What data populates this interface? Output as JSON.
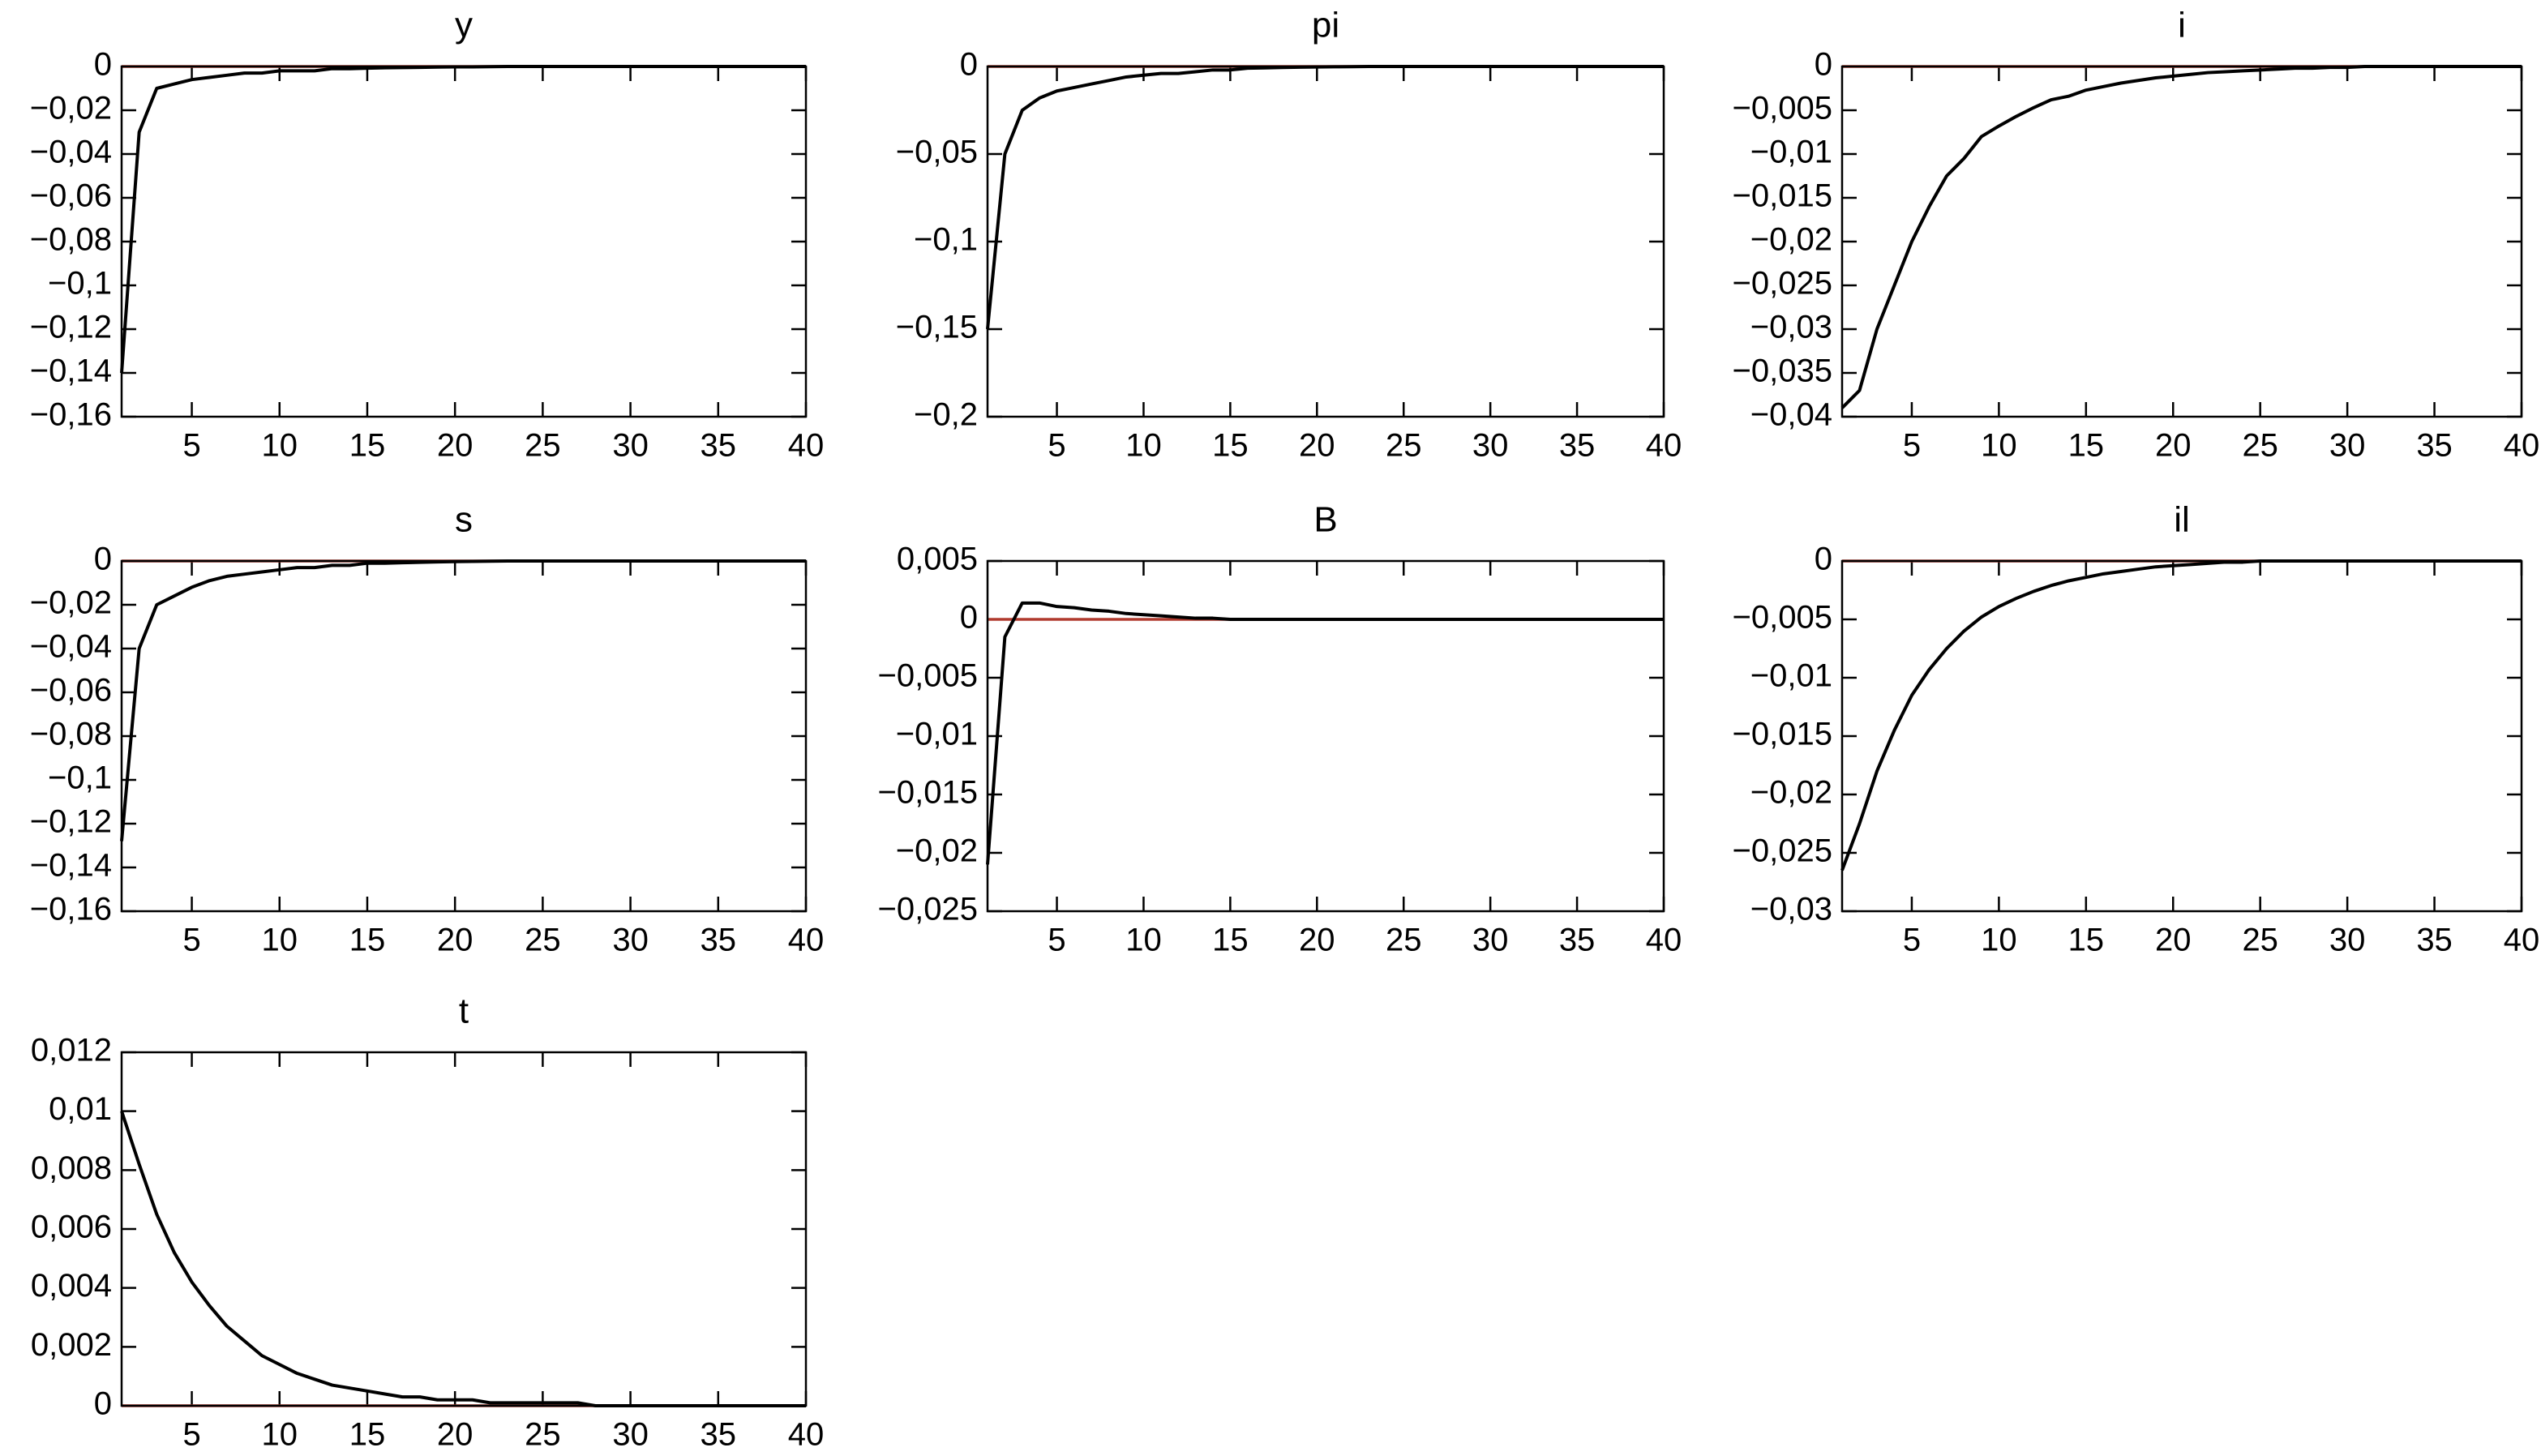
{
  "chart_data": [
    {
      "type": "line",
      "title": "y",
      "x": [
        1,
        2,
        3,
        4,
        5,
        6,
        7,
        8,
        9,
        10,
        11,
        12,
        13,
        14,
        15,
        16,
        17,
        18,
        19,
        20,
        21,
        22,
        23,
        24,
        25,
        26,
        27,
        28,
        29,
        30,
        31,
        32,
        33,
        34,
        35,
        36,
        37,
        38,
        39,
        40
      ],
      "values": [
        -0.14,
        -0.03,
        -0.01,
        -0.008,
        -0.006,
        -0.005,
        -0.004,
        -0.003,
        -0.003,
        -0.002,
        -0.002,
        -0.002,
        -0.001,
        -0.001,
        -0.0008,
        -0.0006,
        -0.0005,
        -0.0004,
        -0.0003,
        -0.0002,
        -0.0002,
        -0.0001,
        0,
        0,
        0,
        0,
        0,
        0,
        0,
        0,
        0,
        0,
        0,
        0,
        0,
        0,
        0,
        0,
        0,
        0
      ],
      "color": "#000000",
      "zero_line": {
        "value": 0,
        "color": "#b03a2e"
      },
      "xlim": [
        1,
        40
      ],
      "xticks": [
        5,
        10,
        15,
        20,
        25,
        30,
        35,
        40
      ],
      "ylim": [
        -0.16,
        0
      ],
      "yticks": [
        0,
        {
          "value": -0.02,
          "label": "−0,02"
        },
        {
          "value": -0.04,
          "label": "−0,04"
        },
        {
          "value": -0.06,
          "label": "−0,06"
        },
        {
          "value": -0.08,
          "label": "−0,08"
        },
        {
          "value": -0.1,
          "label": "−0,1"
        },
        {
          "value": -0.12,
          "label": "−0,12"
        },
        {
          "value": -0.14,
          "label": "−0,14"
        },
        {
          "value": -0.16,
          "label": "−0,16"
        }
      ]
    },
    {
      "type": "line",
      "title": "pi",
      "x": [
        1,
        2,
        3,
        4,
        5,
        6,
        7,
        8,
        9,
        10,
        11,
        12,
        13,
        14,
        15,
        16,
        17,
        18,
        19,
        20,
        21,
        22,
        23,
        24,
        25,
        26,
        27,
        28,
        29,
        30,
        31,
        32,
        33,
        34,
        35,
        36,
        37,
        38,
        39,
        40
      ],
      "values": [
        -0.15,
        -0.05,
        -0.025,
        -0.018,
        -0.014,
        -0.012,
        -0.01,
        -0.008,
        -0.006,
        -0.005,
        -0.004,
        -0.004,
        -0.003,
        -0.002,
        -0.002,
        -0.001,
        -0.0008,
        -0.0006,
        -0.0004,
        -0.0003,
        -0.0002,
        -0.0001,
        0,
        0,
        0,
        0,
        0,
        0,
        0,
        0,
        0,
        0,
        0,
        0,
        0,
        0,
        0,
        0,
        0,
        0
      ],
      "color": "#000000",
      "zero_line": {
        "value": 0,
        "color": "#b03a2e"
      },
      "xlim": [
        1,
        40
      ],
      "xticks": [
        5,
        10,
        15,
        20,
        25,
        30,
        35,
        40
      ],
      "ylim": [
        -0.2,
        0
      ],
      "yticks": [
        0,
        {
          "value": -0.05,
          "label": "−0,05"
        },
        {
          "value": -0.1,
          "label": "−0,1"
        },
        {
          "value": -0.15,
          "label": "−0,15"
        },
        {
          "value": -0.2,
          "label": "−0,2"
        }
      ]
    },
    {
      "type": "line",
      "title": "i",
      "x": [
        1,
        2,
        3,
        4,
        5,
        6,
        7,
        8,
        9,
        10,
        11,
        12,
        13,
        14,
        15,
        16,
        17,
        18,
        19,
        20,
        21,
        22,
        23,
        24,
        25,
        26,
        27,
        28,
        29,
        30,
        31,
        32,
        33,
        34,
        35,
        36,
        37,
        38,
        39,
        40
      ],
      "values": [
        -0.039,
        -0.037,
        -0.03,
        -0.025,
        -0.02,
        -0.016,
        -0.0125,
        -0.0105,
        -0.008,
        -0.0068,
        -0.0057,
        -0.0047,
        -0.0038,
        -0.0034,
        -0.0027,
        -0.0023,
        -0.0019,
        -0.0016,
        -0.0013,
        -0.0011,
        -0.0009,
        -0.0007,
        -0.0006,
        -0.0005,
        -0.0004,
        -0.0003,
        -0.0002,
        -0.0002,
        -0.0001,
        -0.0001,
        0,
        0,
        0,
        0,
        0,
        0,
        0,
        0,
        0,
        0
      ],
      "color": "#000000",
      "zero_line": {
        "value": 0,
        "color": "#b03a2e"
      },
      "xlim": [
        1,
        40
      ],
      "xticks": [
        5,
        10,
        15,
        20,
        25,
        30,
        35,
        40
      ],
      "ylim": [
        -0.04,
        0
      ],
      "yticks": [
        0,
        {
          "value": -0.005,
          "label": "−0,005"
        },
        {
          "value": -0.01,
          "label": "−0,01"
        },
        {
          "value": -0.015,
          "label": "−0,015"
        },
        {
          "value": -0.02,
          "label": "−0,02"
        },
        {
          "value": -0.025,
          "label": "−0,025"
        },
        {
          "value": -0.03,
          "label": "−0,03"
        },
        {
          "value": -0.035,
          "label": "−0,035"
        },
        {
          "value": -0.04,
          "label": "−0,04"
        }
      ]
    },
    {
      "type": "line",
      "title": "s",
      "x": [
        1,
        2,
        3,
        4,
        5,
        6,
        7,
        8,
        9,
        10,
        11,
        12,
        13,
        14,
        15,
        16,
        17,
        18,
        19,
        20,
        21,
        22,
        23,
        24,
        25,
        26,
        27,
        28,
        29,
        30,
        31,
        32,
        33,
        34,
        35,
        36,
        37,
        38,
        39,
        40
      ],
      "values": [
        -0.128,
        -0.04,
        -0.02,
        -0.016,
        -0.012,
        -0.009,
        -0.007,
        -0.006,
        -0.005,
        -0.004,
        -0.003,
        -0.003,
        -0.002,
        -0.002,
        -0.001,
        -0.001,
        -0.0008,
        -0.0006,
        -0.0004,
        -0.0003,
        -0.0002,
        -0.0001,
        0,
        0,
        0,
        0,
        0,
        0,
        0,
        0,
        0,
        0,
        0,
        0,
        0,
        0,
        0,
        0,
        0,
        0
      ],
      "color": "#000000",
      "zero_line": {
        "value": 0,
        "color": "#b03a2e"
      },
      "xlim": [
        1,
        40
      ],
      "xticks": [
        5,
        10,
        15,
        20,
        25,
        30,
        35,
        40
      ],
      "ylim": [
        -0.16,
        0
      ],
      "yticks": [
        0,
        {
          "value": -0.02,
          "label": "−0,02"
        },
        {
          "value": -0.04,
          "label": "−0,04"
        },
        {
          "value": -0.06,
          "label": "−0,06"
        },
        {
          "value": -0.08,
          "label": "−0,08"
        },
        {
          "value": -0.1,
          "label": "−0,1"
        },
        {
          "value": -0.12,
          "label": "−0,12"
        },
        {
          "value": -0.14,
          "label": "−0,14"
        },
        {
          "value": -0.16,
          "label": "−0,16"
        }
      ]
    },
    {
      "type": "line",
      "title": "B",
      "x": [
        1,
        2,
        3,
        4,
        5,
        6,
        7,
        8,
        9,
        10,
        11,
        12,
        13,
        14,
        15,
        16,
        17,
        18,
        19,
        20,
        21,
        22,
        23,
        24,
        25,
        26,
        27,
        28,
        29,
        30,
        31,
        32,
        33,
        34,
        35,
        36,
        37,
        38,
        39,
        40
      ],
      "values": [
        -0.021,
        -0.0015,
        0.0014,
        0.0014,
        0.0011,
        0.001,
        0.0008,
        0.0007,
        0.0005,
        0.0004,
        0.0003,
        0.0002,
        0.0001,
        0.0001,
        0,
        0,
        0,
        0,
        0,
        0,
        0,
        0,
        0,
        0,
        0,
        0,
        0,
        0,
        0,
        0,
        0,
        0,
        0,
        0,
        0,
        0,
        0,
        0,
        0,
        0
      ],
      "color": "#000000",
      "zero_line": {
        "value": 0,
        "color": "#b03a2e"
      },
      "xlim": [
        1,
        40
      ],
      "xticks": [
        5,
        10,
        15,
        20,
        25,
        30,
        35,
        40
      ],
      "ylim": [
        -0.025,
        0.005
      ],
      "yticks": [
        {
          "value": 0.005,
          "label": "0,005"
        },
        0,
        {
          "value": -0.005,
          "label": "−0,005"
        },
        {
          "value": -0.01,
          "label": "−0,01"
        },
        {
          "value": -0.015,
          "label": "−0,015"
        },
        {
          "value": -0.02,
          "label": "−0,02"
        },
        {
          "value": -0.025,
          "label": "−0,025"
        }
      ]
    },
    {
      "type": "line",
      "title": "il",
      "x": [
        1,
        2,
        3,
        4,
        5,
        6,
        7,
        8,
        9,
        10,
        11,
        12,
        13,
        14,
        15,
        16,
        17,
        18,
        19,
        20,
        21,
        22,
        23,
        24,
        25,
        26,
        27,
        28,
        29,
        30,
        31,
        32,
        33,
        34,
        35,
        36,
        37,
        38,
        39,
        40
      ],
      "values": [
        -0.0265,
        -0.0225,
        -0.018,
        -0.0145,
        -0.0115,
        -0.0093,
        -0.0075,
        -0.006,
        -0.0048,
        -0.0039,
        -0.0032,
        -0.0026,
        -0.0021,
        -0.0017,
        -0.0014,
        -0.0011,
        -0.0009,
        -0.0007,
        -0.0005,
        -0.0004,
        -0.0003,
        -0.0002,
        -0.0001,
        -0.0001,
        0,
        0,
        0,
        0,
        0,
        0,
        0,
        0,
        0,
        0,
        0,
        0,
        0,
        0,
        0,
        0
      ],
      "color": "#000000",
      "zero_line": {
        "value": 0,
        "color": "#b03a2e"
      },
      "xlim": [
        1,
        40
      ],
      "xticks": [
        5,
        10,
        15,
        20,
        25,
        30,
        35,
        40
      ],
      "ylim": [
        -0.03,
        0
      ],
      "yticks": [
        0,
        {
          "value": -0.005,
          "label": "−0,005"
        },
        {
          "value": -0.01,
          "label": "−0,01"
        },
        {
          "value": -0.015,
          "label": "−0,015"
        },
        {
          "value": -0.02,
          "label": "−0,02"
        },
        {
          "value": -0.025,
          "label": "−0,025"
        },
        {
          "value": -0.03,
          "label": "−0,03"
        }
      ]
    },
    {
      "type": "line",
      "title": "t",
      "x": [
        1,
        2,
        3,
        4,
        5,
        6,
        7,
        8,
        9,
        10,
        11,
        12,
        13,
        14,
        15,
        16,
        17,
        18,
        19,
        20,
        21,
        22,
        23,
        24,
        25,
        26,
        27,
        28,
        29,
        30,
        31,
        32,
        33,
        34,
        35,
        36,
        37,
        38,
        39,
        40
      ],
      "values": [
        0.01,
        0.0082,
        0.0065,
        0.0052,
        0.0042,
        0.0034,
        0.0027,
        0.0022,
        0.0017,
        0.0014,
        0.0011,
        0.0009,
        0.0007,
        0.0006,
        0.0005,
        0.0004,
        0.0003,
        0.0003,
        0.0002,
        0.0002,
        0.0002,
        0.0001,
        0.0001,
        0.0001,
        0.0001,
        0.0001,
        0.0001,
        0,
        0,
        0,
        0,
        0,
        0,
        0,
        0,
        0,
        0,
        0,
        0,
        0
      ],
      "color": "#000000",
      "zero_line": {
        "value": 0,
        "color": "#b03a2e"
      },
      "xlim": [
        1,
        40
      ],
      "xticks": [
        5,
        10,
        15,
        20,
        25,
        30,
        35,
        40
      ],
      "ylim": [
        0,
        0.012
      ],
      "yticks": [
        {
          "value": 0.012,
          "label": "0,012"
        },
        {
          "value": 0.01,
          "label": "0,01"
        },
        {
          "value": 0.008,
          "label": "0,008"
        },
        {
          "value": 0.006,
          "label": "0,006"
        },
        {
          "value": 0.004,
          "label": "0,004"
        },
        {
          "value": 0.002,
          "label": "0,002"
        },
        0
      ]
    }
  ]
}
